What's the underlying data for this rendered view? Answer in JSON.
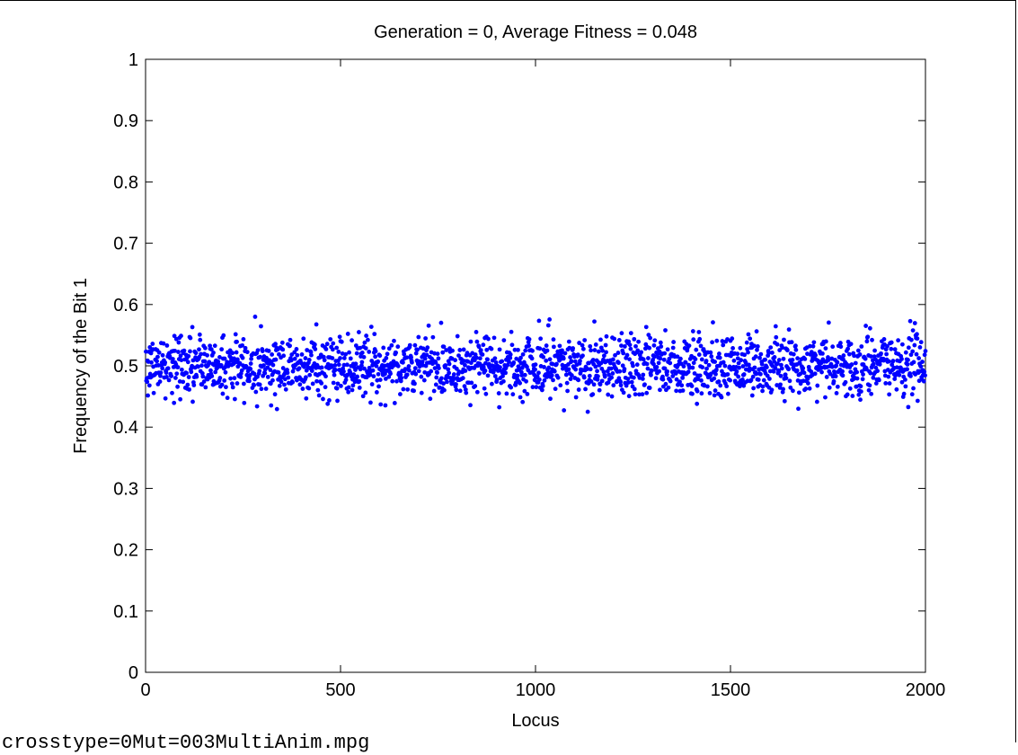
{
  "chart_data": {
    "type": "scatter",
    "title": "Generation = 0, Average Fitness = 0.048",
    "xlabel": "Locus",
    "ylabel": "Frequency of the Bit 1",
    "xlim": [
      0,
      2000
    ],
    "ylim": [
      0,
      1
    ],
    "xticks": [
      "0",
      "500",
      "1000",
      "1500",
      "2000"
    ],
    "yticks": [
      "0",
      "0.1",
      "0.2",
      "0.3",
      "0.4",
      "0.5",
      "0.6",
      "0.7",
      "0.8",
      "0.9",
      "1"
    ],
    "grid": false,
    "marker_color": "#0000ff",
    "series": [
      {
        "point_count": 2000,
        "x_range": [
          1,
          2000
        ],
        "y_center": 0.5,
        "y_range": [
          0.425,
          0.58
        ],
        "y_spread_std": 0.025
      }
    ]
  },
  "caption": "crosstype=0Mut=003MultiAnim.mpg"
}
